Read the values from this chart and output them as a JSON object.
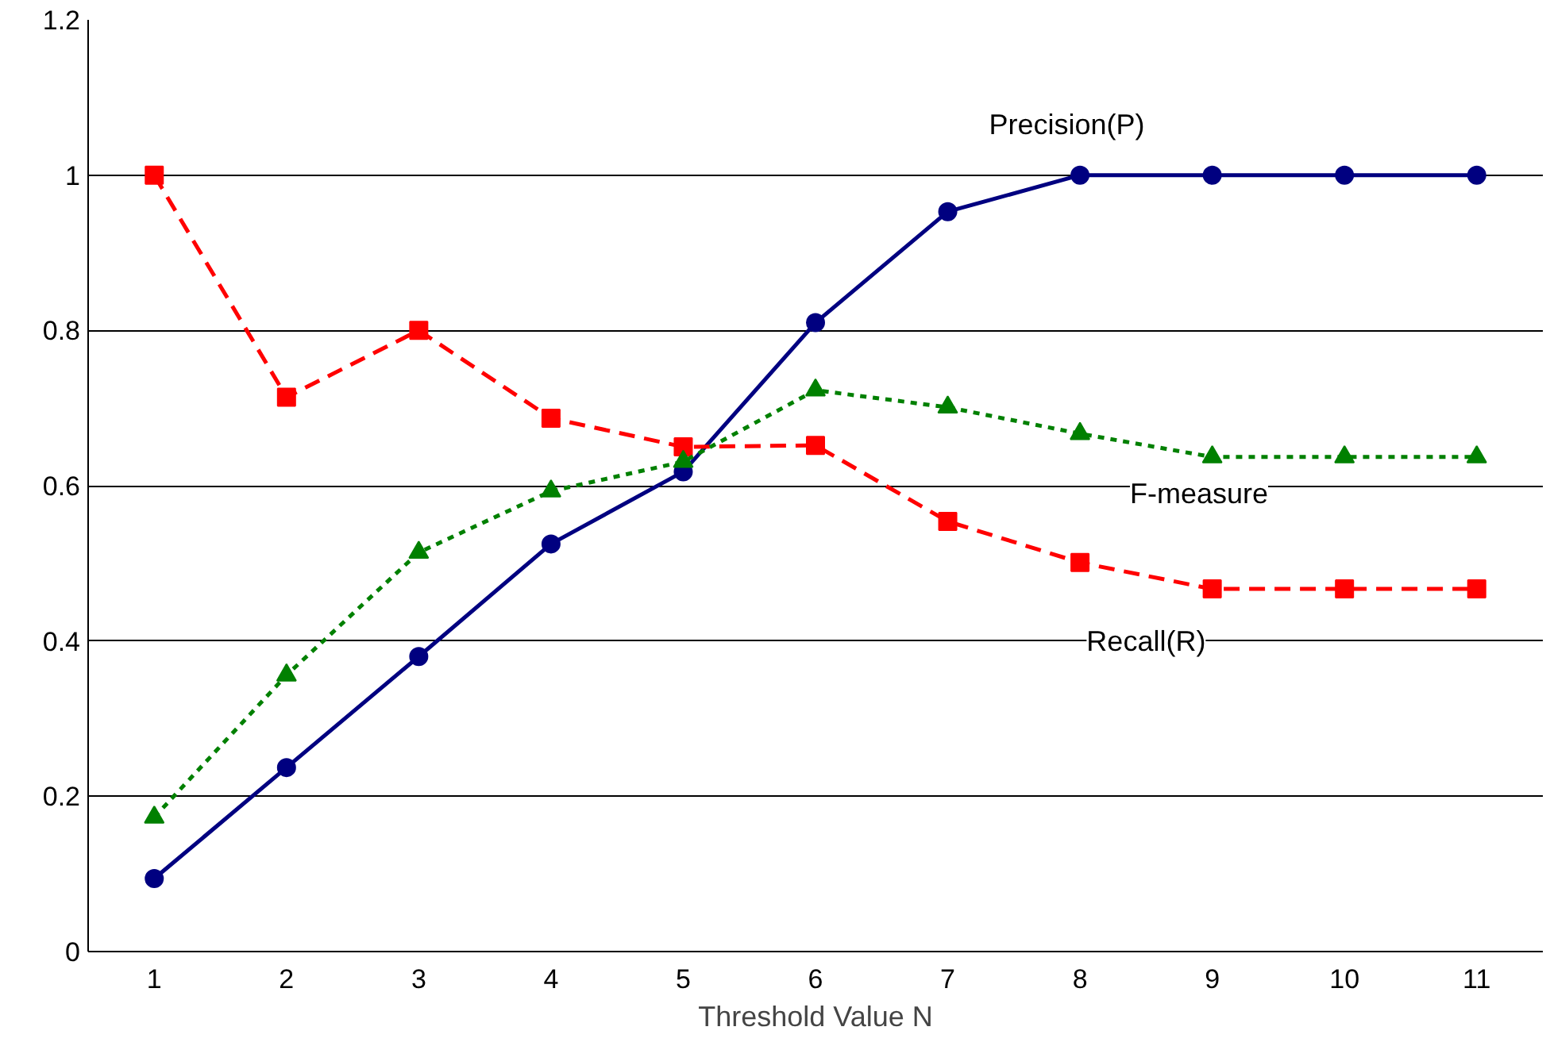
{
  "chart_data": {
    "type": "line",
    "xlabel": "Threshold Value N",
    "categories": [
      "1",
      "2",
      "3",
      "4",
      "5",
      "6",
      "7",
      "8",
      "9",
      "10",
      "11"
    ],
    "ylim": [
      0,
      1.2
    ],
    "yticks": [
      0,
      0.2,
      0.4,
      0.6,
      0.8,
      1,
      1.2
    ],
    "grid": "y",
    "legend": false,
    "series": [
      {
        "name": "Precision(P)",
        "color": "#000080",
        "marker": "circle",
        "line_style": "solid",
        "values": [
          0.094,
          0.237,
          0.38,
          0.525,
          0.618,
          0.81,
          0.953,
          1,
          1,
          1,
          1
        ]
      },
      {
        "name": "Recall(R)",
        "color": "#ff0000",
        "marker": "square",
        "line_style": "dashed",
        "values": [
          1,
          0.714,
          0.8,
          0.687,
          0.65,
          0.652,
          0.554,
          0.501,
          0.467,
          0.467,
          0.467
        ]
      },
      {
        "name": "F-measure",
        "color": "#008000",
        "marker": "triangle",
        "line_style": "dotted",
        "values": [
          0.173,
          0.356,
          0.514,
          0.593,
          0.631,
          0.723,
          0.701,
          0.667,
          0.637,
          0.637,
          0.637
        ]
      }
    ]
  }
}
